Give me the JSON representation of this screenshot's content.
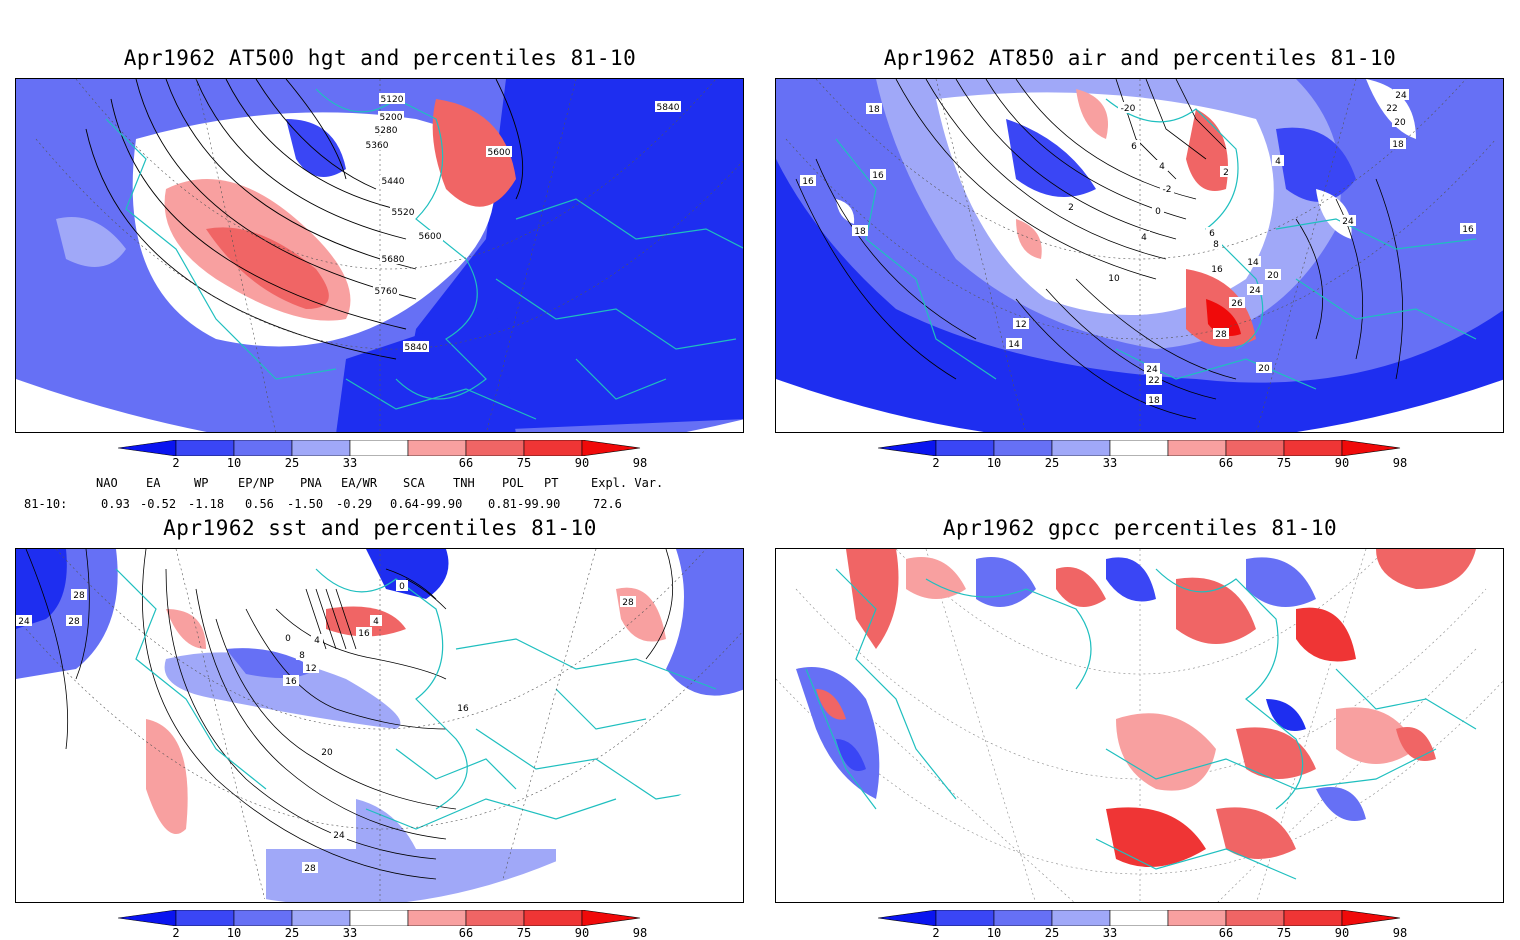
{
  "panels": [
    {
      "title": "Apr1962 AT500 hgt and percentiles 81-10",
      "contour_labels": [
        "5120",
        "5200",
        "5280",
        "5360",
        "5440",
        "5520",
        "5600",
        "5600",
        "5680",
        "5760",
        "5840",
        "5840"
      ]
    },
    {
      "title": "Apr1962 AT850 air and percentiles 81-10",
      "contour_labels": [
        "18",
        "16",
        "16",
        "18",
        "2",
        "0",
        "-2",
        "4",
        "6",
        "2",
        "4",
        "24",
        "22",
        "20",
        "18",
        "24",
        "16",
        "4",
        "6",
        "8",
        "10",
        "14",
        "16",
        "20",
        "24",
        "26",
        "28",
        "12",
        "14",
        "24",
        "22",
        "20",
        "18",
        "-20"
      ]
    },
    {
      "title": "Apr1962 sst and percentiles 81-10",
      "contour_labels": [
        "28",
        "28",
        "24",
        "0",
        "4",
        "8",
        "12",
        "16",
        "16",
        "20",
        "24",
        "28",
        "0",
        "4",
        "28",
        "16"
      ]
    },
    {
      "title": "Apr1962 gpcc percentiles 81-10",
      "contour_labels": []
    }
  ],
  "colorbar": {
    "labels": [
      "2",
      "10",
      "25",
      "33",
      "66",
      "75",
      "90",
      "98"
    ],
    "colors": [
      "#0a14f0",
      "#3a46f5",
      "#6670f5",
      "#a0a8f8",
      "#ffffff",
      "#f8a0a0",
      "#f06565",
      "#ef3535",
      "#f00a0a"
    ]
  },
  "teleconnections": {
    "headers": [
      "NAO",
      "EA",
      "WP",
      "EP/NP",
      "PNA",
      "EA/WR",
      "SCA",
      "TNH",
      "POL",
      "PT",
      "Expl. Var."
    ],
    "row_label": "81-10:",
    "values": [
      "0.93",
      "-0.52",
      "-1.18",
      "0.56",
      "-1.50",
      "-0.29",
      "0.64",
      "-99.90",
      "0.81",
      "-99.90",
      "72.6"
    ]
  }
}
